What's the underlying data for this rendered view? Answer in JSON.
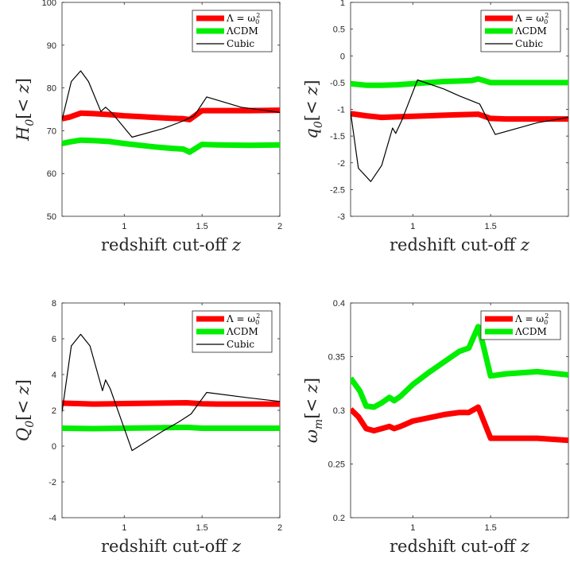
{
  "chart_data": [
    {
      "type": "line",
      "xlabel": "redshift cut-off z",
      "ylabel": "H0[< z]",
      "xlim": [
        0.6,
        2.0
      ],
      "ylim": [
        50,
        100
      ],
      "xticks": [
        1,
        1.5,
        2
      ],
      "xtick_labels": [
        "1",
        "1.5",
        "2"
      ],
      "yticks": [
        50,
        60,
        70,
        80,
        90,
        100
      ],
      "ytick_labels": [
        "50",
        "60",
        "70",
        "80",
        "90",
        "100"
      ],
      "grid": false,
      "legend": "top-right",
      "series": [
        {
          "name": "Λ = ω0²",
          "color": "#ff0000",
          "style": "thick",
          "x": [
            0.6,
            0.65,
            0.72,
            0.8,
            0.9,
            1.0,
            1.1,
            1.2,
            1.3,
            1.38,
            1.42,
            1.5,
            1.6,
            1.8,
            2.0
          ],
          "y": [
            72.8,
            73.2,
            74.1,
            74.0,
            73.8,
            73.5,
            73.3,
            73.1,
            72.9,
            72.8,
            72.6,
            74.7,
            74.7,
            74.7,
            74.8
          ]
        },
        {
          "name": "ΛCDM",
          "color": "#00ee00",
          "style": "thick",
          "x": [
            0.6,
            0.65,
            0.72,
            0.8,
            0.9,
            1.0,
            1.1,
            1.2,
            1.3,
            1.38,
            1.42,
            1.5,
            1.6,
            1.8,
            2.0
          ],
          "y": [
            67.0,
            67.4,
            67.8,
            67.7,
            67.5,
            67.0,
            66.6,
            66.2,
            65.9,
            65.7,
            65.0,
            66.8,
            66.7,
            66.6,
            66.7
          ]
        },
        {
          "name": "Cubic",
          "color": "#000000",
          "style": "thin",
          "x": [
            0.6,
            0.66,
            0.72,
            0.77,
            0.85,
            0.88,
            0.92,
            1.05,
            1.25,
            1.38,
            1.45,
            1.53,
            1.75,
            2.0
          ],
          "y": [
            72.5,
            81.5,
            84.0,
            81.5,
            74.5,
            75.5,
            74.2,
            68.5,
            70.5,
            72.3,
            73.5,
            77.9,
            75.5,
            74.3
          ]
        }
      ]
    },
    {
      "type": "line",
      "xlabel": "redshift cut-off z",
      "ylabel": "q0[< z]",
      "xlim": [
        0.6,
        2.0
      ],
      "ylim": [
        -3,
        1
      ],
      "xticks": [
        1,
        1.5
      ],
      "xtick_labels": [
        "1",
        "1.5"
      ],
      "yticks": [
        -3,
        -2.5,
        -2,
        -1.5,
        -1,
        -0.5,
        0,
        0.5,
        1
      ],
      "ytick_labels": [
        "-3",
        "-2.5",
        "-2",
        "-1.5",
        "-1",
        "-0.5",
        "0",
        "0.5",
        "1"
      ],
      "grid": false,
      "legend": "top-right",
      "series": [
        {
          "name": "Λ = ω0²",
          "color": "#ff0000",
          "style": "thick",
          "x": [
            0.6,
            0.7,
            0.8,
            0.9,
            1.0,
            1.1,
            1.2,
            1.3,
            1.42,
            1.5,
            1.6,
            1.8,
            2.0
          ],
          "y": [
            -1.08,
            -1.12,
            -1.15,
            -1.14,
            -1.13,
            -1.12,
            -1.11,
            -1.1,
            -1.09,
            -1.17,
            -1.18,
            -1.18,
            -1.18
          ]
        },
        {
          "name": "ΛCDM",
          "color": "#00ee00",
          "style": "thick",
          "x": [
            0.6,
            0.7,
            0.8,
            0.9,
            1.0,
            1.1,
            1.2,
            1.3,
            1.38,
            1.42,
            1.5,
            1.6,
            1.8,
            2.0
          ],
          "y": [
            -0.52,
            -0.55,
            -0.55,
            -0.54,
            -0.52,
            -0.5,
            -0.48,
            -0.47,
            -0.46,
            -0.43,
            -0.5,
            -0.5,
            -0.5,
            -0.5
          ]
        },
        {
          "name": "Cubic",
          "color": "#000000",
          "style": "thin",
          "x": [
            0.6,
            0.65,
            0.73,
            0.8,
            0.87,
            0.89,
            0.93,
            1.03,
            1.2,
            1.3,
            1.43,
            1.53,
            1.8,
            2.0
          ],
          "y": [
            -1.05,
            -2.1,
            -2.35,
            -2.05,
            -1.35,
            -1.45,
            -1.2,
            -0.45,
            -0.62,
            -0.75,
            -0.9,
            -1.47,
            -1.25,
            -1.15
          ]
        }
      ]
    },
    {
      "type": "line",
      "xlabel": "redshift cut-off z",
      "ylabel": "Q0[< z]",
      "xlim": [
        0.6,
        2.0
      ],
      "ylim": [
        -4,
        8
      ],
      "xticks": [
        1,
        1.5,
        2
      ],
      "xtick_labels": [
        "1",
        "1.5",
        "2"
      ],
      "yticks": [
        -4,
        -2,
        0,
        2,
        4,
        6,
        8
      ],
      "ytick_labels": [
        "-4",
        "-2",
        "0",
        "2",
        "4",
        "6",
        "8"
      ],
      "grid": false,
      "legend": "top-right",
      "series": [
        {
          "name": "Λ = ω0²",
          "color": "#ff0000",
          "style": "thick",
          "x": [
            0.6,
            0.7,
            0.8,
            0.9,
            1.0,
            1.2,
            1.4,
            1.5,
            1.6,
            1.8,
            2.0
          ],
          "y": [
            2.4,
            2.38,
            2.35,
            2.36,
            2.38,
            2.4,
            2.42,
            2.37,
            2.35,
            2.35,
            2.35
          ]
        },
        {
          "name": "ΛCDM",
          "color": "#00ee00",
          "style": "thick",
          "x": [
            0.6,
            0.8,
            1.0,
            1.2,
            1.4,
            1.5,
            1.6,
            1.8,
            2.0
          ],
          "y": [
            1.0,
            0.98,
            1.0,
            1.02,
            1.05,
            1.0,
            1.0,
            1.0,
            1.0
          ]
        },
        {
          "name": "Cubic",
          "color": "#000000",
          "style": "thin",
          "x": [
            0.6,
            0.66,
            0.72,
            0.78,
            0.86,
            0.88,
            0.91,
            1.05,
            1.25,
            1.35,
            1.43,
            1.53,
            1.8,
            2.0
          ],
          "y": [
            1.9,
            5.6,
            6.25,
            5.6,
            3.1,
            3.7,
            3.2,
            -0.25,
            0.85,
            1.35,
            1.8,
            3.0,
            2.7,
            2.5
          ]
        }
      ]
    },
    {
      "type": "line",
      "xlabel": "redshift cut-off z",
      "ylabel": "ωm[< z]",
      "xlim": [
        0.6,
        2.0
      ],
      "ylim": [
        0.2,
        0.4
      ],
      "xticks": [
        1,
        1.5
      ],
      "xtick_labels": [
        "1",
        "1.5"
      ],
      "yticks": [
        0.2,
        0.25,
        0.3,
        0.35,
        0.4
      ],
      "ytick_labels": [
        "0.2",
        "0.25",
        "0.3",
        "0.35",
        "0.4"
      ],
      "grid": false,
      "legend": "top-right",
      "series": [
        {
          "name": "Λ = ω0²",
          "color": "#ff0000",
          "style": "thick",
          "x": [
            0.6,
            0.65,
            0.7,
            0.75,
            0.8,
            0.85,
            0.88,
            0.92,
            1.0,
            1.1,
            1.2,
            1.3,
            1.36,
            1.42,
            1.5,
            1.6,
            1.8,
            2.0
          ],
          "y": [
            0.301,
            0.294,
            0.283,
            0.281,
            0.283,
            0.285,
            0.283,
            0.285,
            0.29,
            0.293,
            0.296,
            0.298,
            0.298,
            0.303,
            0.274,
            0.274,
            0.274,
            0.272
          ]
        },
        {
          "name": "ΛCDM",
          "color": "#00ee00",
          "style": "thick",
          "x": [
            0.6,
            0.66,
            0.7,
            0.75,
            0.8,
            0.85,
            0.88,
            0.92,
            1.0,
            1.1,
            1.2,
            1.3,
            1.36,
            1.42,
            1.45,
            1.5,
            1.6,
            1.8,
            2.0
          ],
          "y": [
            0.33,
            0.318,
            0.304,
            0.303,
            0.307,
            0.312,
            0.309,
            0.313,
            0.324,
            0.335,
            0.345,
            0.355,
            0.358,
            0.378,
            0.362,
            0.332,
            0.334,
            0.336,
            0.333
          ]
        }
      ]
    }
  ]
}
